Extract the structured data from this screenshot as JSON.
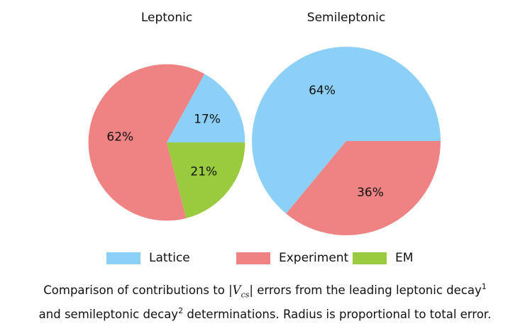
{
  "colors": {
    "lattice": "#8ccff7",
    "experiment": "#ef8283",
    "em": "#9acb3f"
  },
  "chart_data": {
    "type": "pie",
    "legend": [
      "Lattice",
      "Experiment",
      "EM"
    ],
    "legend_position": "bottom",
    "pies": [
      {
        "title": "Leptonic",
        "relative_radius": 0.83,
        "slices": [
          {
            "label": "Lattice",
            "value": 17,
            "text": "17%"
          },
          {
            "label": "Experiment",
            "value": 62,
            "text": "62%"
          },
          {
            "label": "EM",
            "value": 21,
            "text": "21%"
          }
        ]
      },
      {
        "title": "Semileptonic",
        "relative_radius": 1.0,
        "slices": [
          {
            "label": "Lattice",
            "value": 64,
            "text": "64%"
          },
          {
            "label": "Experiment",
            "value": 36,
            "text": "36%"
          }
        ]
      }
    ]
  },
  "caption": {
    "pre": "Comparison of contributions to |",
    "vcs": "V",
    "vcs_sub": "cs",
    "mid": "| errors from the leading leptonic decay",
    "ref1": "1",
    "line2": "and semileptonic decay",
    "ref2": "2",
    "post": " determinations. Radius is proportional to total error."
  }
}
